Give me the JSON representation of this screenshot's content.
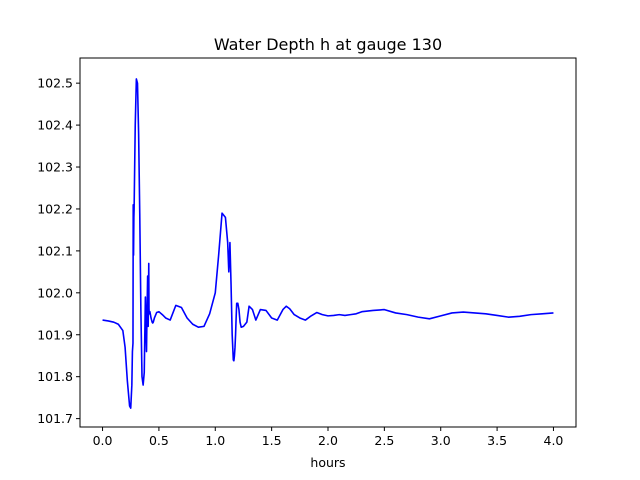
{
  "chart_data": {
    "type": "line",
    "title": "Water Depth h at gauge 130",
    "xlabel": "hours",
    "ylabel": "",
    "xlim": [
      -0.2,
      4.2
    ],
    "ylim": [
      101.68,
      102.56
    ],
    "xticks": [
      0.0,
      0.5,
      1.0,
      1.5,
      2.0,
      2.5,
      3.0,
      3.5,
      4.0
    ],
    "xtick_labels": [
      "0.0",
      "0.5",
      "1.0",
      "1.5",
      "2.0",
      "2.5",
      "3.0",
      "3.5",
      "4.0"
    ],
    "yticks": [
      101.7,
      101.8,
      101.9,
      102.0,
      102.1,
      102.2,
      102.3,
      102.4,
      102.5
    ],
    "ytick_labels": [
      "101.7",
      "101.8",
      "101.9",
      "102.0",
      "102.1",
      "102.2",
      "102.3",
      "102.4",
      "102.5"
    ],
    "grid": false,
    "series": [
      {
        "color": "#0000ff",
        "x": [
          0.0,
          0.05,
          0.1,
          0.14,
          0.18,
          0.2,
          0.22,
          0.24,
          0.25,
          0.26,
          0.265,
          0.27,
          0.272,
          0.275,
          0.278,
          0.28,
          0.285,
          0.29,
          0.3,
          0.31,
          0.32,
          0.33,
          0.34,
          0.35,
          0.36,
          0.37,
          0.38,
          0.39,
          0.395,
          0.4,
          0.405,
          0.41,
          0.412,
          0.415,
          0.42,
          0.425,
          0.43,
          0.435,
          0.44,
          0.445,
          0.45,
          0.46,
          0.48,
          0.5,
          0.53,
          0.56,
          0.6,
          0.65,
          0.7,
          0.75,
          0.8,
          0.85,
          0.9,
          0.95,
          1.0,
          1.03,
          1.06,
          1.09,
          1.11,
          1.12,
          1.13,
          1.14,
          1.15,
          1.16,
          1.165,
          1.17,
          1.175,
          1.18,
          1.185,
          1.19,
          1.2,
          1.21,
          1.22,
          1.23,
          1.25,
          1.28,
          1.3,
          1.33,
          1.36,
          1.4,
          1.45,
          1.5,
          1.55,
          1.6,
          1.63,
          1.66,
          1.7,
          1.75,
          1.8,
          1.85,
          1.9,
          1.95,
          2.0,
          2.05,
          2.1,
          2.15,
          2.2,
          2.25,
          2.3,
          2.4,
          2.5,
          2.6,
          2.7,
          2.8,
          2.9,
          3.0,
          3.1,
          3.2,
          3.3,
          3.4,
          3.5,
          3.6,
          3.7,
          3.8,
          3.9,
          4.0
        ],
        "y": [
          101.935,
          101.933,
          101.93,
          101.925,
          101.91,
          101.87,
          101.79,
          101.73,
          101.725,
          101.78,
          101.86,
          101.88,
          102.21,
          102.09,
          102.18,
          102.2,
          102.3,
          102.4,
          102.51,
          102.5,
          102.38,
          102.19,
          101.96,
          101.8,
          101.78,
          101.81,
          101.99,
          101.86,
          101.96,
          102.04,
          101.92,
          102.07,
          101.96,
          101.95,
          101.955,
          101.948,
          101.94,
          101.935,
          101.93,
          101.928,
          101.93,
          101.94,
          101.953,
          101.955,
          101.948,
          101.94,
          101.935,
          101.97,
          101.965,
          101.94,
          101.925,
          101.918,
          101.92,
          101.95,
          102.0,
          102.09,
          102.19,
          102.18,
          102.12,
          102.05,
          102.12,
          102.02,
          101.9,
          101.84,
          101.838,
          101.85,
          101.87,
          101.9,
          101.94,
          101.975,
          101.975,
          101.96,
          101.93,
          101.918,
          101.92,
          101.93,
          101.968,
          101.96,
          101.935,
          101.96,
          101.958,
          101.94,
          101.935,
          101.96,
          101.968,
          101.962,
          101.948,
          101.94,
          101.935,
          101.945,
          101.953,
          101.948,
          101.945,
          101.946,
          101.948,
          101.946,
          101.948,
          101.95,
          101.955,
          101.958,
          101.96,
          101.952,
          101.948,
          101.942,
          101.938,
          101.945,
          101.952,
          101.954,
          101.952,
          101.95,
          101.946,
          101.942,
          101.944,
          101.948,
          101.95,
          101.952
        ]
      }
    ]
  }
}
